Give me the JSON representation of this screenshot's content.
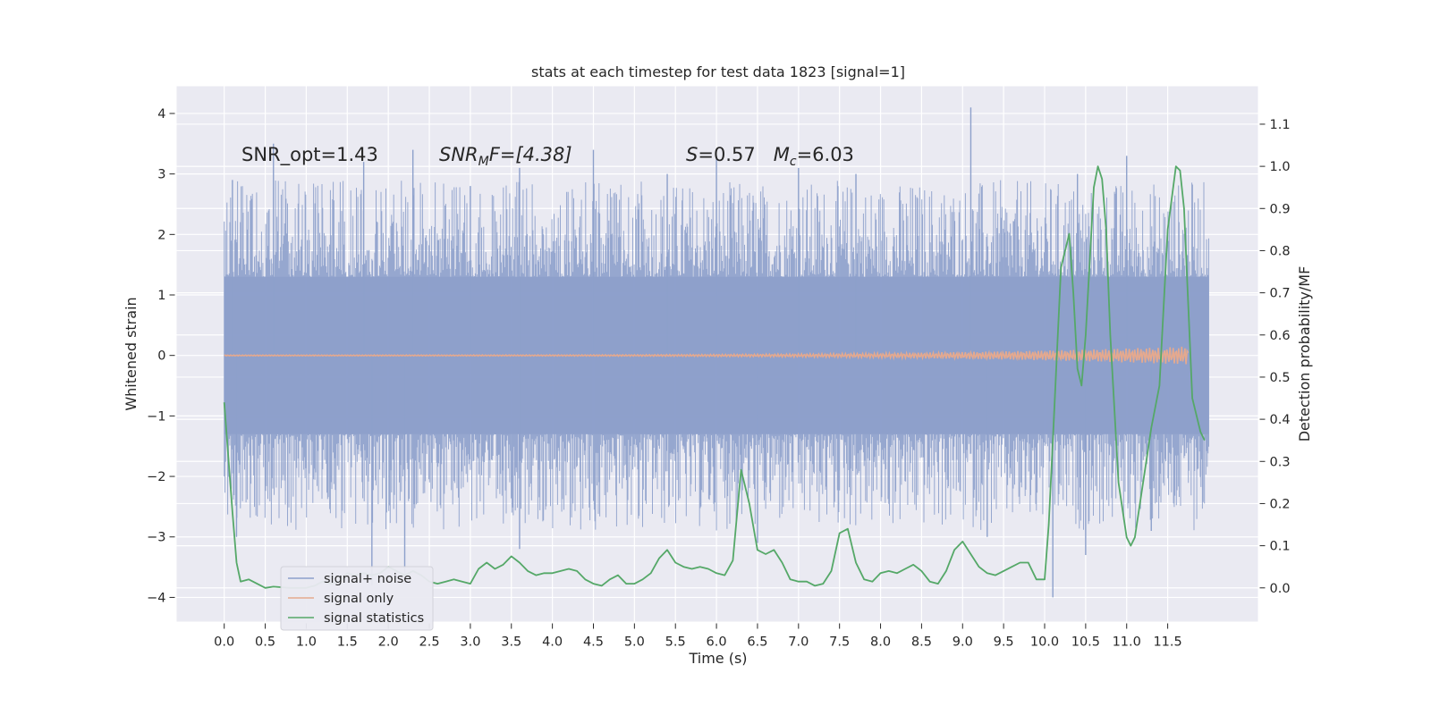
{
  "chart_data": {
    "type": "line",
    "title": "stats at each timestep for test data 1823 [signal=1]",
    "xlabel": "Time (s)",
    "ylabel": "Whitened strain",
    "y2label": "Detection probability/MF",
    "xlim": [
      -0.58,
      12.6
    ],
    "ylim": [
      -4.4,
      4.45
    ],
    "y2lim": [
      -0.08,
      1.19
    ],
    "xticks": [
      0.0,
      0.5,
      1.0,
      1.5,
      2.0,
      2.5,
      3.0,
      3.5,
      4.0,
      4.5,
      5.0,
      5.5,
      6.0,
      6.5,
      7.0,
      7.5,
      8.0,
      8.5,
      9.0,
      9.5,
      10.0,
      10.5,
      11.0,
      11.5
    ],
    "xtick_labels": [
      "0.0",
      "0.5",
      "1.0",
      "1.5",
      "2.0",
      "2.5",
      "3.0",
      "3.5",
      "4.0",
      "4.5",
      "5.0",
      "5.5",
      "6.0",
      "6.5",
      "7.0",
      "7.5",
      "8.0",
      "8.5",
      "9.0",
      "9.5",
      "10.0",
      "10.5",
      "11.0",
      "11.5"
    ],
    "yticks": [
      -4,
      -3,
      -2,
      -1,
      0,
      1,
      2,
      3,
      4
    ],
    "ytick_labels": [
      "−4",
      "−3",
      "−2",
      "−1",
      "0",
      "1",
      "2",
      "3",
      "4"
    ],
    "y2ticks": [
      0.0,
      0.1,
      0.2,
      0.3,
      0.4,
      0.5,
      0.6,
      0.7,
      0.8,
      0.9,
      1.0,
      1.1
    ],
    "y2tick_labels": [
      "0.0",
      "0.1",
      "0.2",
      "0.3",
      "0.4",
      "0.5",
      "0.6",
      "0.7",
      "0.8",
      "0.9",
      "1.0",
      "1.1"
    ],
    "grid": true,
    "legend_position": "bottom-left",
    "annotations": [
      {
        "text": "SNR_opt=1.43",
        "x": 0.2,
        "y": 3.3
      },
      {
        "text_parts": [
          "SNR",
          "M",
          "F=[4.38]"
        ],
        "x": 2.6,
        "y": 3.3
      },
      {
        "text_parts": [
          "S",
          "=0.57   ",
          "M",
          "c",
          "=6.03"
        ],
        "x": 5.6,
        "y": 3.3
      }
    ],
    "series": [
      {
        "name": "signal+ noise",
        "color": "#8da0cb",
        "kind": "noise",
        "x_range": [
          0.0,
          12.0
        ],
        "band_upper": 1.3,
        "band_lower": -1.3,
        "peaks": [
          {
            "x": 0.1,
            "y": 2.9
          },
          {
            "x": 0.6,
            "y": 3.5
          },
          {
            "x": 1.7,
            "y": 3.2
          },
          {
            "x": 2.3,
            "y": 3.4
          },
          {
            "x": 3.0,
            "y": 2.8
          },
          {
            "x": 3.6,
            "y": 3.1
          },
          {
            "x": 4.5,
            "y": 3.4
          },
          {
            "x": 5.4,
            "y": 3.0
          },
          {
            "x": 6.0,
            "y": 3.3
          },
          {
            "x": 7.0,
            "y": 3.1
          },
          {
            "x": 7.7,
            "y": 3.0
          },
          {
            "x": 9.1,
            "y": 4.1
          },
          {
            "x": 10.4,
            "y": 3.0
          },
          {
            "x": 11.0,
            "y": 3.3
          }
        ],
        "troughs": [
          {
            "x": 0.15,
            "y": -3.0
          },
          {
            "x": 1.8,
            "y": -3.8
          },
          {
            "x": 2.2,
            "y": -3.6
          },
          {
            "x": 3.6,
            "y": -3.2
          },
          {
            "x": 6.5,
            "y": -3.1
          },
          {
            "x": 9.3,
            "y": -3.0
          },
          {
            "x": 10.1,
            "y": -4.0
          },
          {
            "x": 10.5,
            "y": -3.3
          },
          {
            "x": 11.3,
            "y": -2.9
          }
        ]
      },
      {
        "name": "signal only",
        "color": "#e5a98e",
        "kind": "chirp",
        "x_range": [
          0.0,
          12.0
        ],
        "max_amplitude": 0.14,
        "merger_x": 11.75
      },
      {
        "name": "signal statistics",
        "color": "#55a868",
        "axis": "right",
        "x": [
          0.0,
          0.1,
          0.15,
          0.2,
          0.3,
          0.4,
          0.5,
          0.6,
          0.8,
          1.0,
          1.1,
          1.2,
          1.3,
          1.4,
          1.5,
          1.6,
          1.7,
          1.8,
          1.9,
          2.0,
          2.1,
          2.2,
          2.3,
          2.4,
          2.5,
          2.6,
          2.7,
          2.8,
          2.9,
          3.0,
          3.1,
          3.2,
          3.3,
          3.4,
          3.5,
          3.6,
          3.7,
          3.8,
          3.9,
          4.0,
          4.1,
          4.2,
          4.3,
          4.4,
          4.5,
          4.6,
          4.7,
          4.8,
          4.9,
          5.0,
          5.1,
          5.2,
          5.3,
          5.4,
          5.5,
          5.6,
          5.7,
          5.8,
          5.9,
          6.0,
          6.1,
          6.2,
          6.3,
          6.4,
          6.5,
          6.6,
          6.7,
          6.8,
          6.9,
          7.0,
          7.1,
          7.2,
          7.3,
          7.4,
          7.5,
          7.6,
          7.7,
          7.8,
          7.9,
          8.0,
          8.1,
          8.2,
          8.3,
          8.4,
          8.5,
          8.6,
          8.7,
          8.8,
          8.9,
          9.0,
          9.1,
          9.2,
          9.3,
          9.4,
          9.5,
          9.6,
          9.7,
          9.8,
          9.9,
          10.0,
          10.05,
          10.1,
          10.2,
          10.3,
          10.35,
          10.4,
          10.45,
          10.5,
          10.6,
          10.65,
          10.7,
          10.75,
          10.8,
          10.9,
          11.0,
          11.05,
          11.1,
          11.2,
          11.3,
          11.4,
          11.5,
          11.6,
          11.65,
          11.7,
          11.8,
          11.9,
          11.95
        ],
        "values": [
          0.44,
          0.18,
          0.06,
          0.015,
          0.02,
          0.01,
          0.0,
          0.003,
          0.0,
          0.0,
          0.005,
          0.015,
          0.01,
          0.015,
          0.035,
          0.03,
          0.035,
          0.03,
          0.035,
          0.05,
          0.04,
          0.03,
          0.04,
          0.03,
          0.015,
          0.01,
          0.015,
          0.02,
          0.015,
          0.01,
          0.045,
          0.06,
          0.045,
          0.055,
          0.075,
          0.06,
          0.04,
          0.03,
          0.035,
          0.035,
          0.04,
          0.045,
          0.04,
          0.02,
          0.01,
          0.005,
          0.02,
          0.03,
          0.01,
          0.01,
          0.02,
          0.035,
          0.07,
          0.09,
          0.06,
          0.05,
          0.045,
          0.05,
          0.045,
          0.035,
          0.03,
          0.065,
          0.28,
          0.2,
          0.09,
          0.08,
          0.09,
          0.06,
          0.02,
          0.015,
          0.015,
          0.005,
          0.01,
          0.04,
          0.13,
          0.14,
          0.06,
          0.02,
          0.015,
          0.035,
          0.04,
          0.035,
          0.045,
          0.055,
          0.04,
          0.015,
          0.01,
          0.04,
          0.09,
          0.11,
          0.08,
          0.05,
          0.035,
          0.03,
          0.04,
          0.05,
          0.06,
          0.06,
          0.02,
          0.02,
          0.15,
          0.35,
          0.76,
          0.84,
          0.7,
          0.52,
          0.48,
          0.6,
          0.95,
          1.0,
          0.97,
          0.85,
          0.6,
          0.25,
          0.12,
          0.1,
          0.12,
          0.25,
          0.38,
          0.48,
          0.85,
          1.0,
          0.99,
          0.9,
          0.45,
          0.37,
          0.35
        ]
      }
    ]
  }
}
